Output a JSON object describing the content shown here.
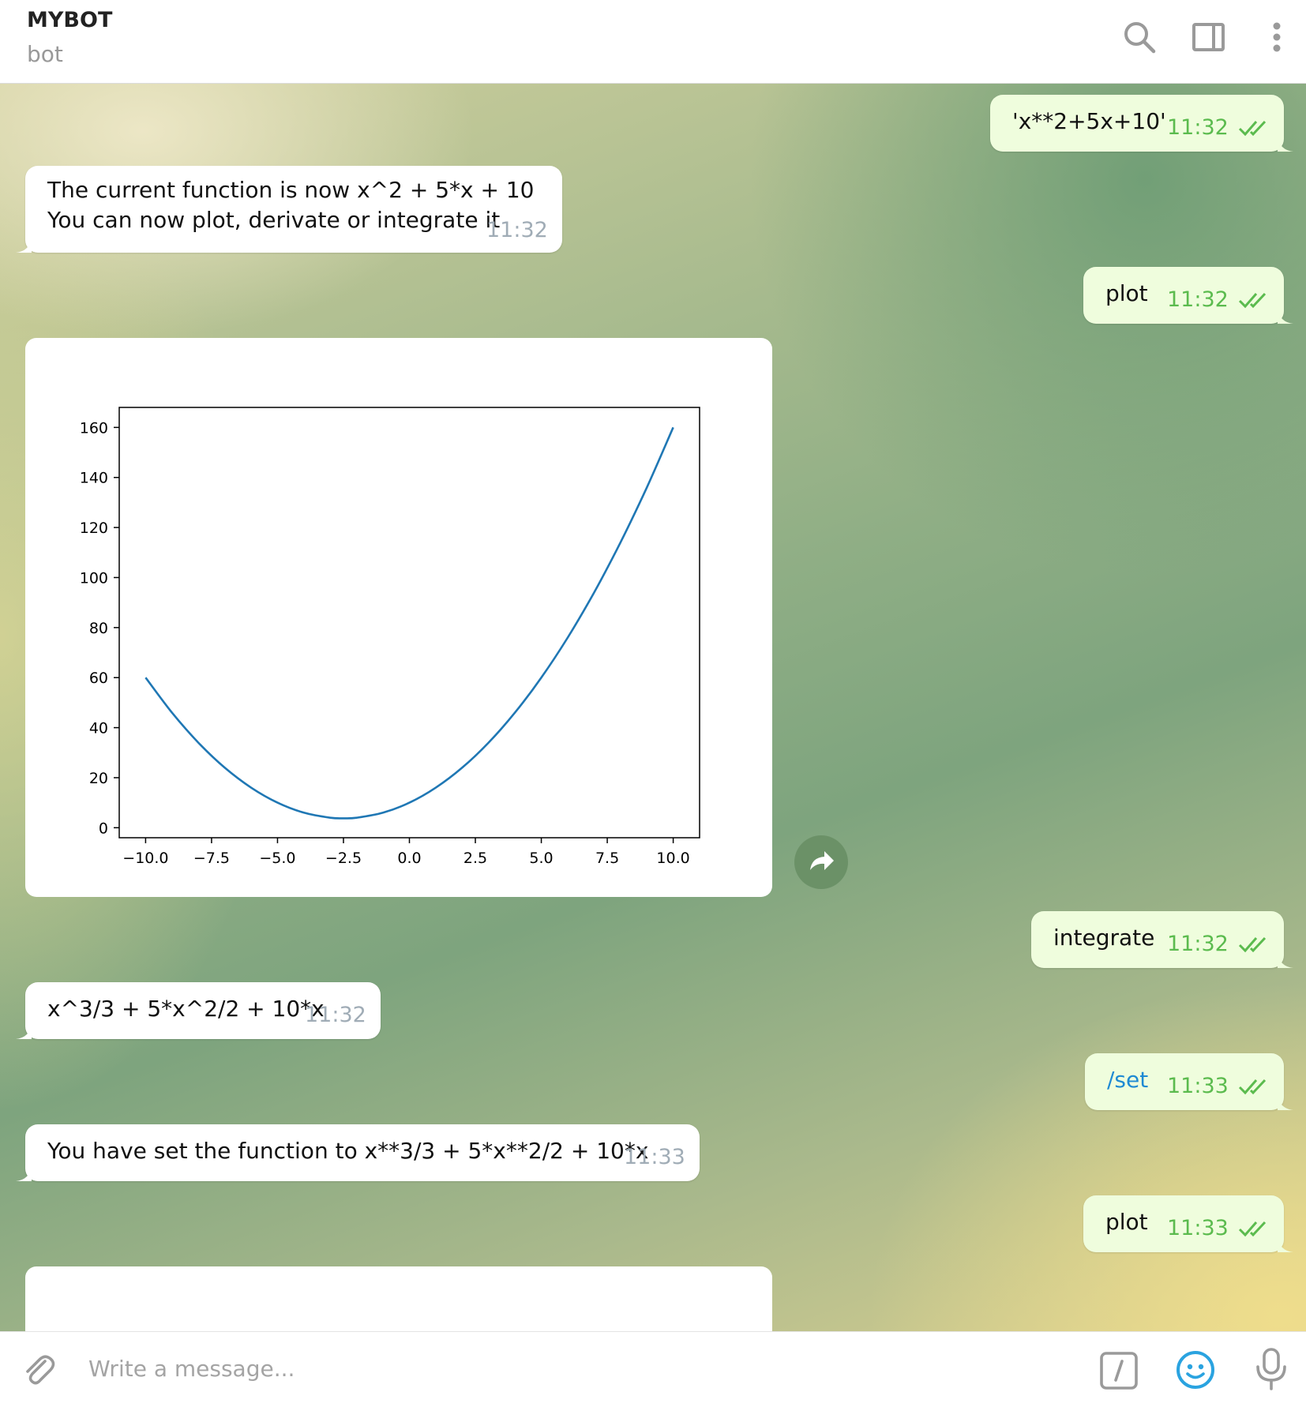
{
  "header": {
    "title": "MYBOT",
    "subtitle": "bot"
  },
  "messages": [
    {
      "id": "m1",
      "direction": "out",
      "text": "'x**2+5x+10'",
      "time": "11:32",
      "status": "read"
    },
    {
      "id": "m2",
      "direction": "in",
      "lines": [
        "The current function is now x^2 + 5*x + 10",
        "You can now plot, derivate or integrate it"
      ],
      "time": "11:32"
    },
    {
      "id": "m3",
      "direction": "out",
      "text": "plot",
      "time": "11:32",
      "status": "read"
    },
    {
      "id": "m4",
      "direction": "in",
      "type": "photo"
    },
    {
      "id": "m5",
      "direction": "out",
      "text": "integrate",
      "time": "11:32",
      "status": "read"
    },
    {
      "id": "m6",
      "direction": "in",
      "text": "x^3/3 + 5*x^2/2 + 10*x",
      "time": "11:32"
    },
    {
      "id": "m7",
      "direction": "out",
      "text": "/set",
      "time": "11:33",
      "status": "read",
      "is_command": true
    },
    {
      "id": "m8",
      "direction": "in",
      "text": "You have set the function to x**3/3 + 5*x**2/2 + 10*x",
      "time": "11:33"
    },
    {
      "id": "m9",
      "direction": "out",
      "text": "plot",
      "time": "11:33",
      "status": "read"
    },
    {
      "id": "m10",
      "direction": "in",
      "type": "photo",
      "partially_visible": true
    }
  ],
  "chart_data": {
    "type": "line",
    "title": "",
    "xlabel": "",
    "ylabel": "",
    "function": "x^2 + 5*x + 10",
    "x": [
      -10,
      -9,
      -8,
      -7,
      -6,
      -5,
      -4,
      -3,
      -2.5,
      -2,
      -1,
      0,
      1,
      2,
      3,
      4,
      5,
      6,
      7,
      8,
      9,
      10
    ],
    "y": [
      60,
      46,
      34,
      24,
      16,
      10,
      6,
      4,
      3.75,
      4,
      6,
      10,
      16,
      24,
      34,
      46,
      60,
      76,
      94,
      114,
      136,
      160
    ],
    "xlim": [
      -11,
      11
    ],
    "ylim": [
      -4,
      168
    ],
    "x_ticks": [
      "−10.0",
      "−7.5",
      "−5.0",
      "−2.5",
      "0.0",
      "2.5",
      "5.0",
      "7.5",
      "10.0"
    ],
    "x_tick_values": [
      -10,
      -7.5,
      -5,
      -2.5,
      0,
      2.5,
      5,
      7.5,
      10
    ],
    "y_ticks": [
      "0",
      "20",
      "40",
      "60",
      "80",
      "100",
      "120",
      "140",
      "160"
    ],
    "y_tick_values": [
      0,
      20,
      40,
      60,
      80,
      100,
      120,
      140,
      160
    ],
    "series_color": "#1f77b4",
    "grid": false,
    "legend": false
  },
  "composer": {
    "placeholder": "Write a message..."
  },
  "colors": {
    "outgoing_bubble": "#effddd",
    "incoming_bubble": "#ffffff",
    "read_ticks": "#5bbb4e",
    "link": "#1f8ad3",
    "accent": "#2aa3e0"
  },
  "icons": {
    "header": [
      "search-icon",
      "sidebar-toggle-icon",
      "more-vertical-icon"
    ],
    "composer": [
      "attach-paperclip-icon",
      "bot-command-icon",
      "emoji-icon",
      "microphone-icon"
    ],
    "share": "share-arrow-icon"
  }
}
